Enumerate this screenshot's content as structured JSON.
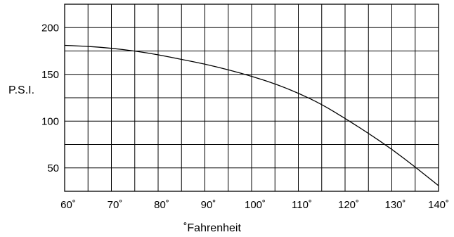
{
  "chart_data": {
    "type": "line",
    "xlabel": "˚Fahrenheit",
    "ylabel": "P.S.I.",
    "xlim": [
      60,
      140
    ],
    "ylim": [
      25,
      225
    ],
    "grid": true,
    "legend": "none",
    "x_ticks": [
      60,
      70,
      80,
      90,
      100,
      110,
      120,
      130,
      140
    ],
    "x_tick_labels": [
      "60˚",
      "70˚",
      "80˚",
      "90˚",
      "100˚",
      "110˚",
      "120˚",
      "130˚",
      "140˚"
    ],
    "y_ticks": [
      50,
      100,
      150,
      200
    ],
    "y_tick_labels": [
      "50",
      "100",
      "150",
      "200"
    ],
    "x_grid_step": 5,
    "y_grid_step": 25,
    "series": [
      {
        "x": [
          60,
          65,
          70,
          75,
          80,
          85,
          90,
          95,
          100,
          105,
          110,
          115,
          120,
          125,
          130,
          135,
          140
        ],
        "values": [
          181,
          180,
          178,
          175,
          171,
          166,
          161,
          155,
          148,
          140,
          130,
          118,
          103,
          87,
          70,
          51,
          31
        ]
      }
    ],
    "colors": {
      "background": "#ffffff",
      "grid": "#000000",
      "line": "#000000",
      "text": "#000000"
    }
  }
}
